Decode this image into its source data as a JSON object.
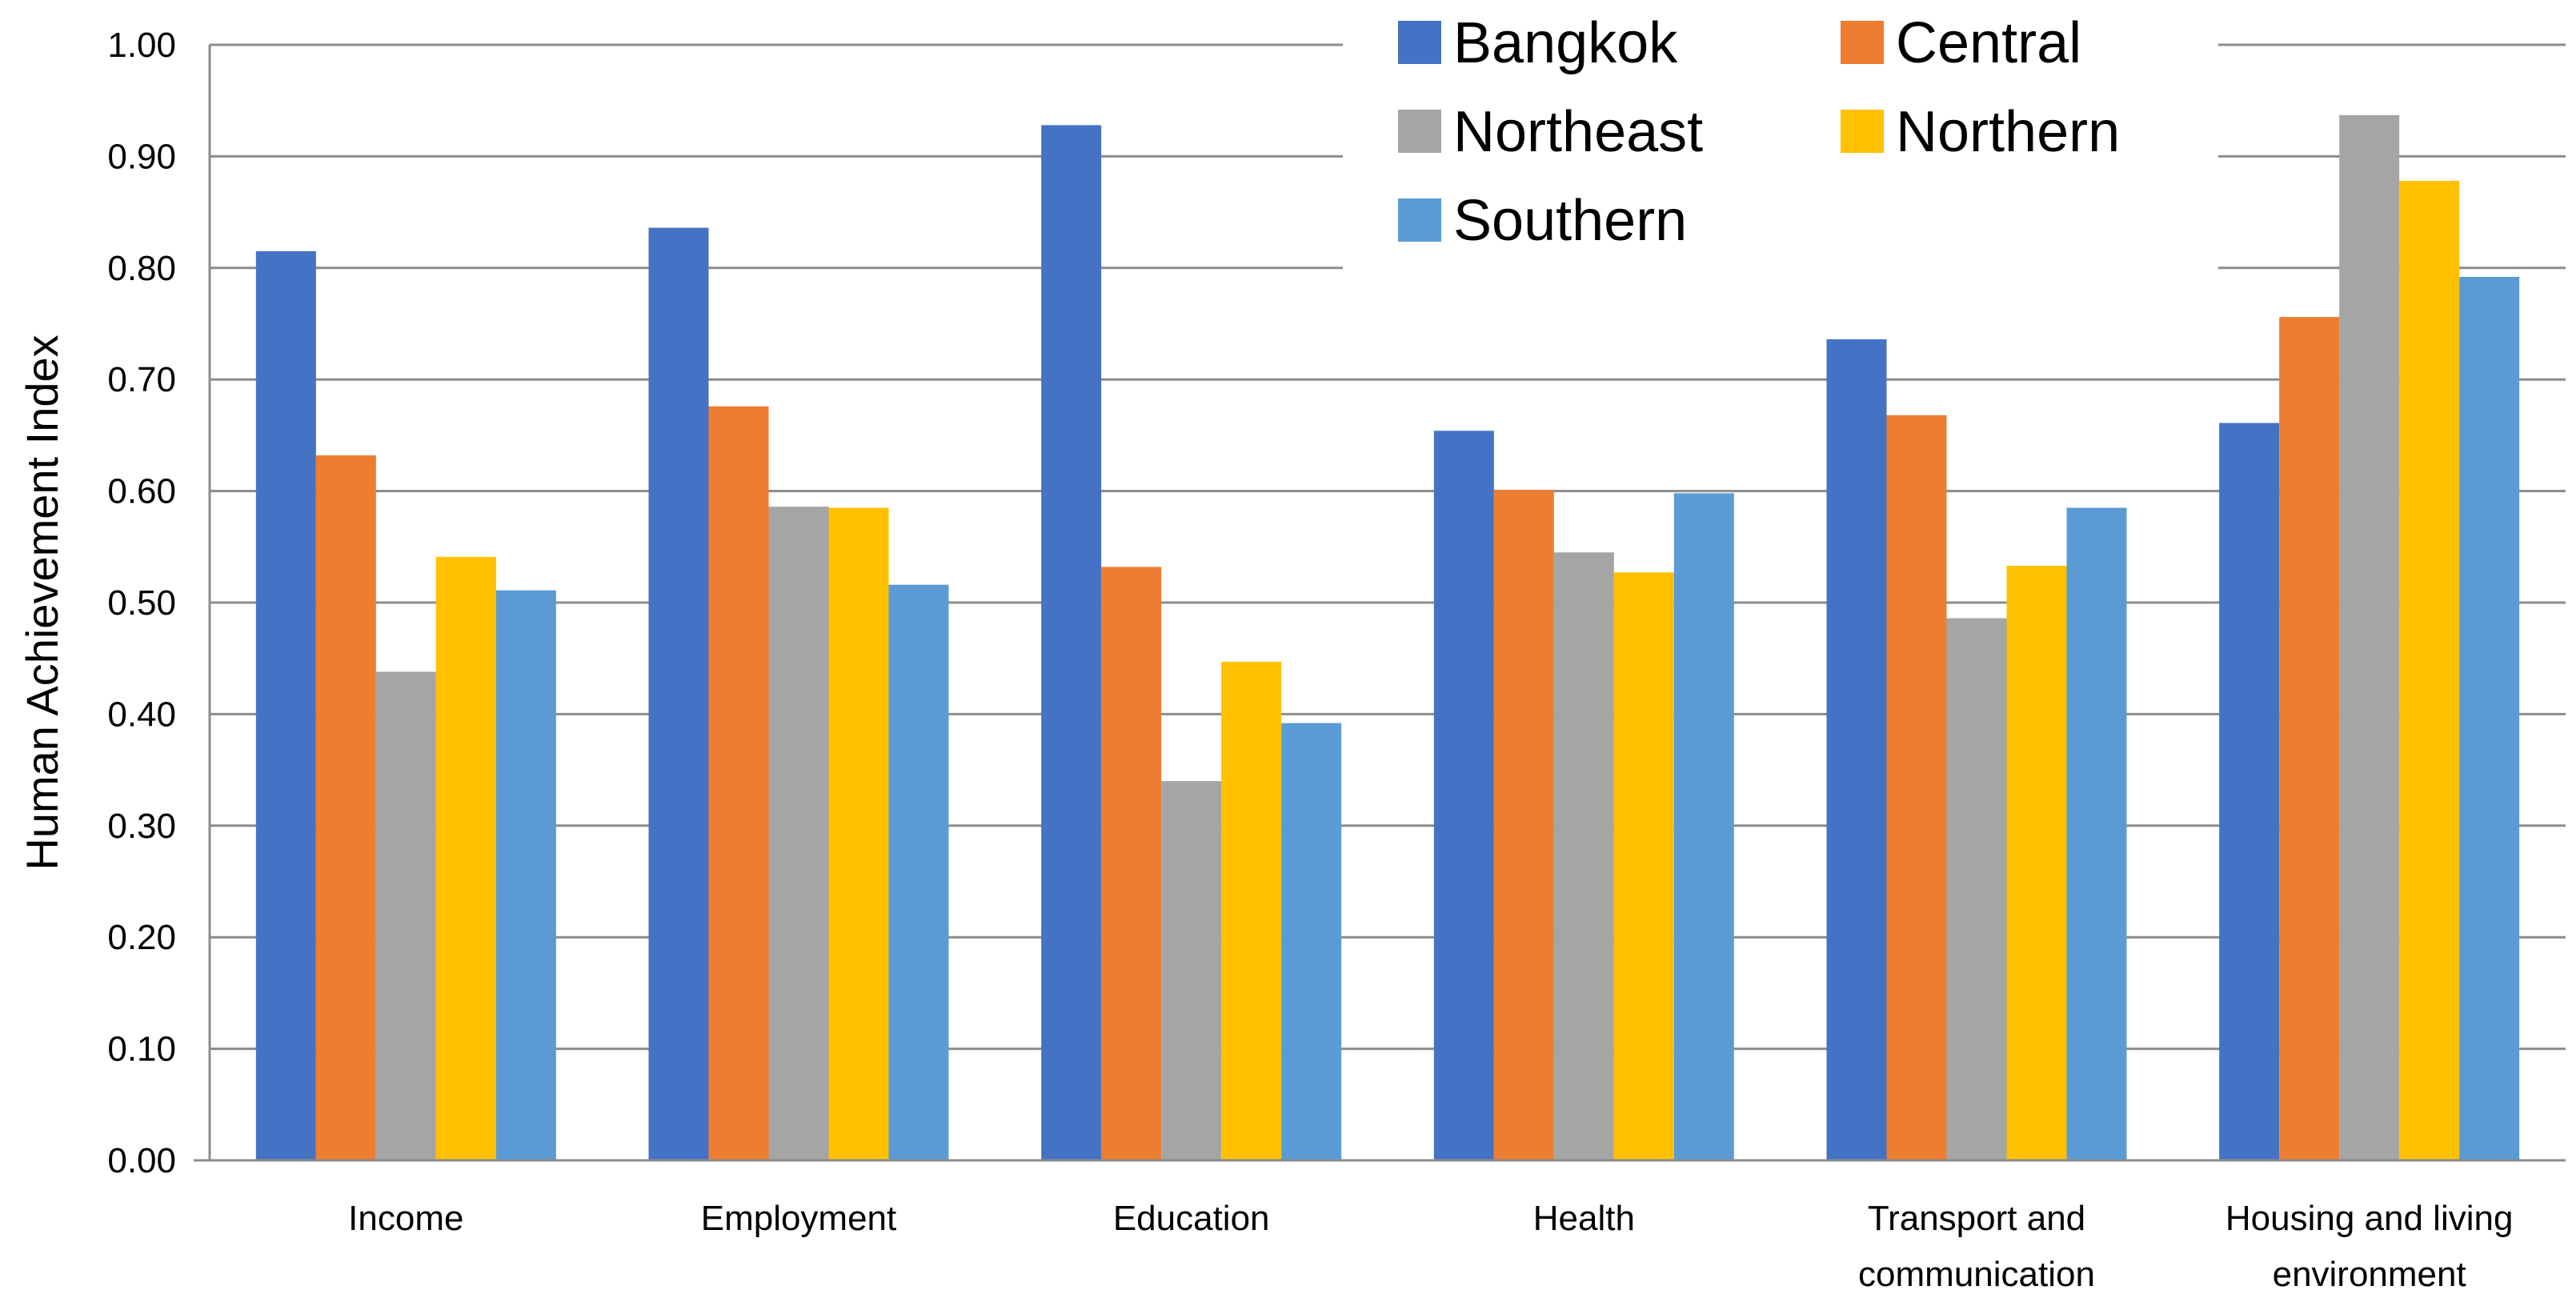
{
  "chart_data": {
    "type": "bar",
    "title": "",
    "xlabel": "",
    "ylabel": "Human Achievement Index",
    "ylim": [
      0,
      1
    ],
    "yticks": [
      "0.00",
      "0.10",
      "0.20",
      "0.30",
      "0.40",
      "0.50",
      "0.60",
      "0.70",
      "0.80",
      "0.90",
      "1.00"
    ],
    "grid": true,
    "legend_position": "top-right",
    "categories": [
      [
        "Income"
      ],
      [
        "Employment"
      ],
      [
        "Education"
      ],
      [
        "Health"
      ],
      [
        "Transport and",
        "communication"
      ],
      [
        "Housing and living",
        "environment"
      ]
    ],
    "series": [
      {
        "name": "Bangkok",
        "color": "#4472C4",
        "values": [
          0.815,
          0.836,
          0.928,
          0.654,
          0.736,
          0.661
        ]
      },
      {
        "name": "Central",
        "color": "#ED7D31",
        "values": [
          0.632,
          0.676,
          0.532,
          0.601,
          0.668,
          0.756
        ]
      },
      {
        "name": "Northeast",
        "color": "#A5A5A5",
        "values": [
          0.438,
          0.586,
          0.34,
          0.545,
          0.486,
          0.937
        ]
      },
      {
        "name": "Northern",
        "color": "#FFC000",
        "values": [
          0.541,
          0.585,
          0.447,
          0.527,
          0.533,
          0.878
        ]
      },
      {
        "name": "Southern",
        "color": "#5B9BD5",
        "values": [
          0.511,
          0.516,
          0.392,
          0.598,
          0.585,
          0.792
        ]
      }
    ]
  }
}
